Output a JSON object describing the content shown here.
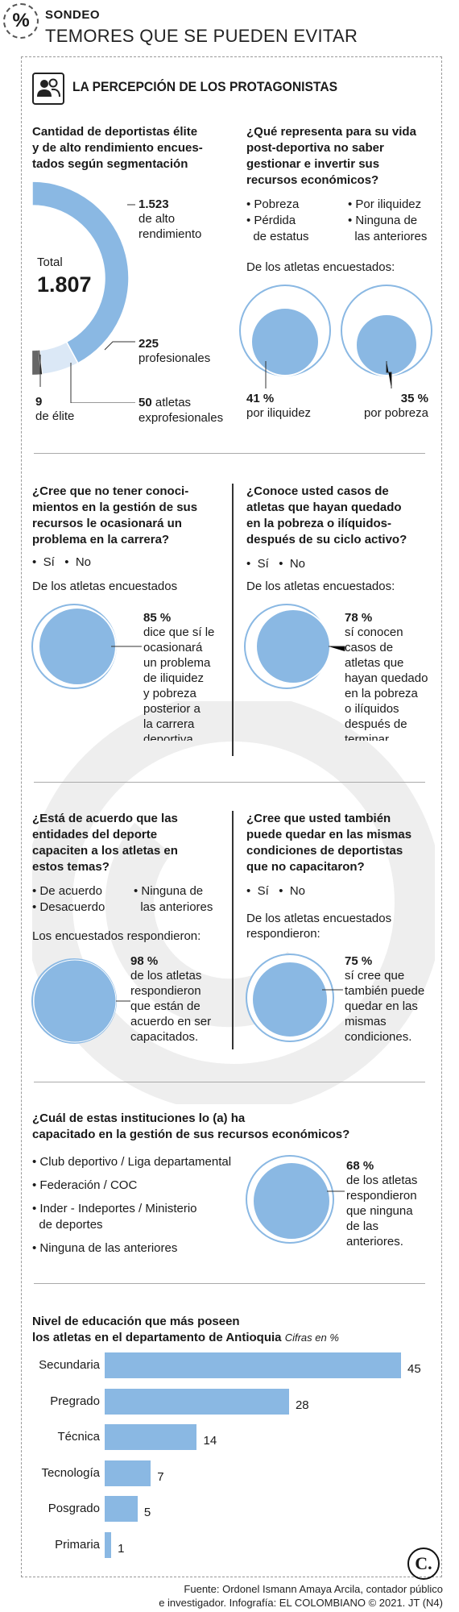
{
  "header": {
    "icon": "%",
    "kicker": "SONDEO",
    "title": "TEMORES QUE SE PUEDEN EVITAR"
  },
  "section": {
    "icon": "people-icon",
    "title": "LA PERCEPCIÓN DE LOS PROTAGONISTAS"
  },
  "q1": {
    "title": [
      "Cantidad de deportistas élite",
      "y de alto rendimiento encues-",
      "tados según segmentación"
    ],
    "total_label": "Total",
    "total_value": "1.807",
    "labels": [
      {
        "value": "1.523",
        "text": [
          "de alto",
          "rendimiento"
        ]
      },
      {
        "value": "225",
        "text": [
          "profesionales"
        ]
      },
      {
        "value": "9",
        "text": [
          "de élite"
        ]
      },
      {
        "value": "50",
        "text": [
          "atletas",
          "exprofesionales"
        ]
      }
    ]
  },
  "q2": {
    "title": [
      "¿Qué representa para su vida",
      "post-deportiva no saber",
      "gestionar e invertir sus",
      "recursos económicos?"
    ],
    "options_left": [
      "• Pobreza",
      "• Pérdida",
      "  de estatus"
    ],
    "options_right": [
      "• Por iliquidez",
      "• Ninguna de",
      "  las anteriores"
    ],
    "sub": "De los atletas encuestados:",
    "results": [
      {
        "pct": "41 %",
        "text": "por iliquidez"
      },
      {
        "pct": "35 %",
        "text": "por pobreza"
      }
    ]
  },
  "q3": {
    "title": [
      "¿Cree que no tener conoci-",
      "mientos en la gestión de sus",
      "recursos le ocasionará un",
      "problema en la carrera?"
    ],
    "options": "•  Sí   •  No",
    "sub": "De los atletas encuestados",
    "pct": "85 %",
    "text": [
      "dice que sí le",
      "ocasionará",
      "un problema",
      "de iliquidez",
      "y pobreza",
      "posterior a",
      "la carrera",
      "deportiva."
    ]
  },
  "q4": {
    "title": [
      "¿Conoce usted casos de",
      "atletas que hayan quedado",
      "en la pobreza o ilíquidos-",
      "después de su ciclo activo?"
    ],
    "options": "•  Sí   •  No",
    "sub": "De los atletas encuestados:",
    "pct": "78 %",
    "text": [
      "sí conocen",
      "casos de",
      "atletas que",
      "hayan quedado",
      "en la pobreza",
      "o ilíquidos",
      "después de",
      "terminar."
    ]
  },
  "q5": {
    "title": [
      "¿Está de acuerdo que las",
      "entidades del deporte",
      "capaciten a los atletas en",
      "estos temas?"
    ],
    "options_left": [
      "• De acuerdo",
      "• Desacuerdo"
    ],
    "options_right": [
      "• Ninguna de",
      "  las anteriores"
    ],
    "sub": "Los encuestados respondieron:",
    "pct": "98 %",
    "text": [
      "de los atletas",
      "respondieron",
      "que están de",
      "acuerdo en ser",
      "capacitados."
    ]
  },
  "q6": {
    "title": [
      "¿Cree que usted también",
      "puede quedar en las mismas",
      "condiciones de deportistas",
      "que no capacitaron?"
    ],
    "options": "•  Sí   •  No",
    "sub": [
      "De los atletas encuestados",
      "respondieron:"
    ],
    "pct": "75 %",
    "text": [
      "sí cree que",
      "también puede",
      "quedar en las",
      "mismas",
      "condiciones."
    ]
  },
  "q7": {
    "title": [
      "¿Cuál de estas instituciones lo (a) ha",
      "capacitado en la gestión de sus recursos económicos?"
    ],
    "options": [
      "• Club deportivo / Liga departamental",
      "• Federación / COC",
      "• Inder - Indeportes / Ministerio",
      "  de deportes",
      "• Ninguna de las anteriores"
    ],
    "pct": "68 %",
    "text": [
      "de los atletas",
      "respondieron",
      "que ninguna",
      "de las",
      "anteriores."
    ]
  },
  "chart_data": [
    {
      "type": "pie",
      "title": "Cantidad de deportistas élite y de alto rendimiento encuestados según segmentación",
      "categories": [
        "de alto rendimiento",
        "profesionales",
        "de élite",
        "atletas exprofesionales"
      ],
      "values": [
        1523,
        225,
        9,
        50
      ],
      "total": 1807
    },
    {
      "type": "bar",
      "title": "Nivel de educación que más poseen los atletas en el departamento de Antioquia",
      "subtitle": "Cifras en %",
      "categories": [
        "Secundaria",
        "Pregrado",
        "Técnica",
        "Tecnología",
        "Posgrado",
        "Primaria"
      ],
      "values": [
        45,
        28,
        14,
        7,
        5,
        1
      ],
      "color": "#8ab8e3"
    }
  ],
  "edu": {
    "title": [
      "Nivel de educación que más poseen",
      "los atletas en el departamento de Antioquia"
    ],
    "unit": "Cifras en %"
  },
  "footer": [
    "Fuente: Ordonel Ismann Amaya Arcila, contador público",
    "e investigador. Infografía: EL COLOMBIANO © 2021. JT (N4)"
  ],
  "logo": "C."
}
